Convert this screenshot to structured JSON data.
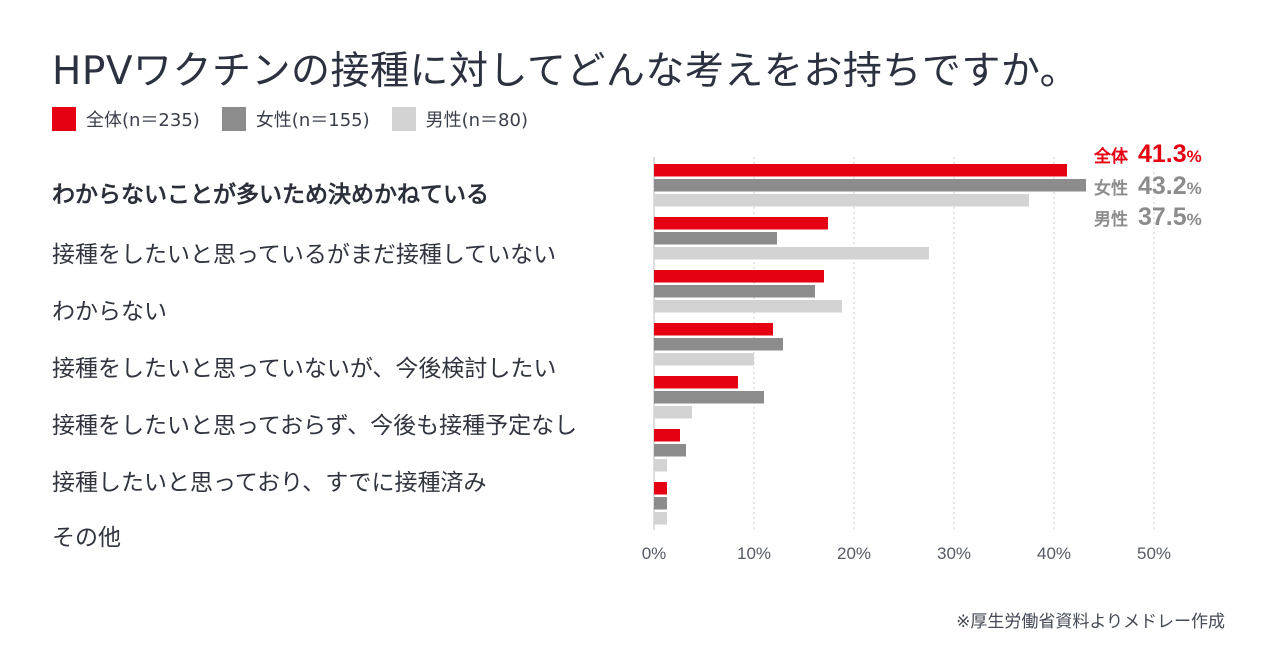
{
  "title": "HPVワクチンの接種に対してどんな考えをお持ちですか。",
  "legend": [
    {
      "label": "全体(n＝235)",
      "color": "#e50012"
    },
    {
      "label": "女性(n＝155)",
      "color": "#8c8c8c"
    },
    {
      "label": "男性(n＝80)",
      "color": "#d3d3d3"
    }
  ],
  "callouts": [
    {
      "label": "全体",
      "value": "41.3",
      "unit": "%",
      "color": "#e50012"
    },
    {
      "label": "女性",
      "value": "43.2",
      "unit": "%",
      "color": "#8c8c8c"
    },
    {
      "label": "男性",
      "value": "37.5",
      "unit": "%",
      "color": "#8c8c8c"
    }
  ],
  "source": "※厚生労働省資料よりメドレー作成",
  "chart_data": {
    "type": "bar",
    "orientation": "horizontal",
    "categories": [
      "わからないことが多いため決めかねている",
      "接種をしたいと思っているがまだ接種していない",
      "わからない",
      "接種をしたいと思っていないが、今後検討したい",
      "接種をしたいと思っておらず、今後も接種予定なし",
      "接種したいと思っており、すでに接種済み",
      "その他"
    ],
    "series": [
      {
        "name": "全体(n＝235)",
        "color": "#e50012",
        "values": [
          41.3,
          17.4,
          17.0,
          11.9,
          8.4,
          2.6,
          1.3
        ]
      },
      {
        "name": "女性(n＝155)",
        "color": "#8c8c8c",
        "values": [
          43.2,
          12.3,
          16.1,
          12.9,
          11.0,
          3.2,
          1.3
        ]
      },
      {
        "name": "男性(n＝80)",
        "color": "#d3d3d3",
        "values": [
          37.5,
          27.5,
          18.8,
          10.0,
          3.8,
          1.3,
          1.3
        ]
      }
    ],
    "xlim": [
      0,
      50
    ],
    "xticks": [
      "0%",
      "10%",
      "20%",
      "30%",
      "40%",
      "50%"
    ],
    "grid": true,
    "legend": "top-left"
  }
}
